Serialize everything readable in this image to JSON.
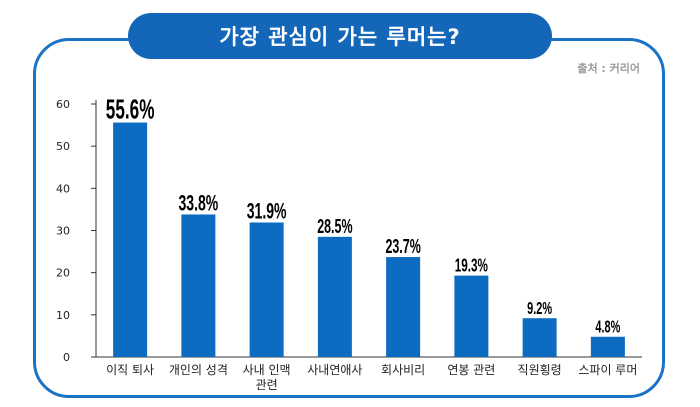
{
  "title": "가장 관심이 가는 루머는?",
  "source": "출처 : 커리어",
  "colors": {
    "bar": "#0b6cc2",
    "frame": "#1a73c4",
    "title_bg": "#1467b8"
  },
  "chart_data": {
    "type": "bar",
    "title": "가장 관심이 가는 루머는?",
    "categories": [
      [
        "이직 퇴사"
      ],
      [
        "개인의 성격"
      ],
      [
        "사내 인맥",
        "관련"
      ],
      [
        "사내연애사"
      ],
      [
        "회사비리"
      ],
      [
        "연봉 관련"
      ],
      [
        "직원횡령"
      ],
      [
        "스파이 루머"
      ]
    ],
    "values": [
      55.6,
      33.8,
      31.9,
      28.5,
      23.7,
      19.3,
      9.2,
      4.8
    ],
    "value_labels": [
      "55.6%",
      "33.8%",
      "31.9%",
      "28.5%",
      "23.7%",
      "19.3%",
      "9.2%",
      "4.8%"
    ],
    "ylim": [
      0,
      60
    ],
    "yticks": [
      "0",
      "10",
      "20",
      "30",
      "40",
      "50",
      "60"
    ],
    "xlabel": "",
    "ylabel": "",
    "grid": false,
    "legend": "none"
  }
}
